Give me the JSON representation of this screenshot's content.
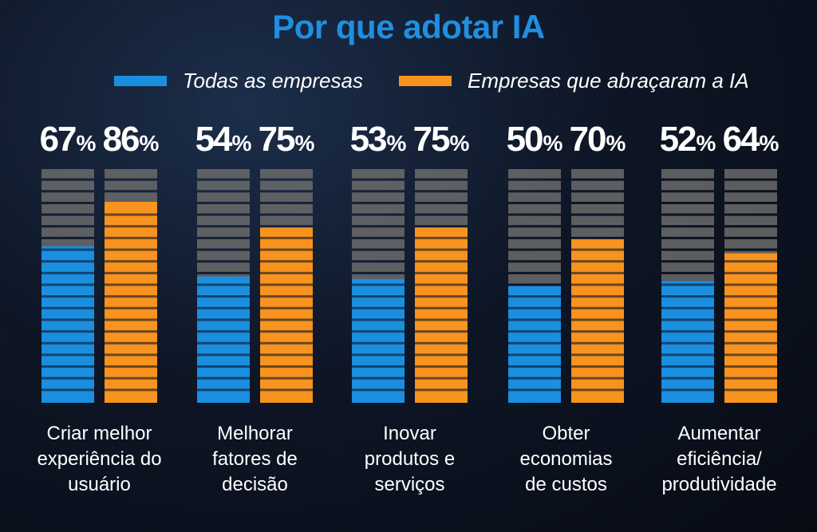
{
  "title": "Por que adotar IA",
  "colors": {
    "title": "#1f8fe0",
    "series_all": "#1a8fe0",
    "series_ai": "#f7931e",
    "empty": "#6b6b6b",
    "background": "#0b1220"
  },
  "chart_data": {
    "type": "bar",
    "title": "Por que adotar IA",
    "categories": [
      "Criar melhor experiência do usuário",
      "Melhorar fatores de decisão",
      "Inovar produtos e serviços",
      "Obter economias de custos",
      "Aumentar eficiência/ produtividade"
    ],
    "category_lines": [
      [
        "Criar melhor",
        "experiência do",
        "usuário"
      ],
      [
        "Melhorar",
        "fatores de",
        "decisão"
      ],
      [
        "Inovar",
        "produtos e",
        "serviços"
      ],
      [
        "Obter",
        "economias",
        "de custos"
      ],
      [
        "Aumentar",
        "eficiência/",
        "produtividade"
      ]
    ],
    "series": [
      {
        "name": "Todas as empresas",
        "values": [
          67,
          54,
          53,
          50,
          52
        ]
      },
      {
        "name": "Empresas que abraçaram a IA",
        "values": [
          86,
          75,
          75,
          70,
          64
        ]
      }
    ],
    "unit": "%",
    "ylim": [
      0,
      100
    ],
    "legend_position": "top"
  }
}
